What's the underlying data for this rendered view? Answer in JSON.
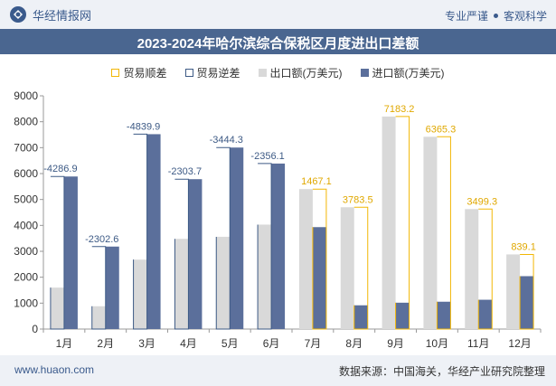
{
  "header": {
    "brand_name": "华经情报网",
    "tagline_left": "专业严谨",
    "tagline_right": "客观科学"
  },
  "title": "2023-2024年哈尔滨综合保税区月度进出口差额",
  "legend": {
    "surplus": "贸易顺差",
    "deficit": "贸易逆差",
    "export": "出口额(万美元)",
    "import": "进口额(万美元)"
  },
  "footer": {
    "url": "www.huaon.com",
    "source": "数据来源：中国海关，华经产业研究院整理"
  },
  "colors": {
    "surplus": "#f2b705",
    "deficit": "#3d5a85",
    "export": "#d9d9d9",
    "import": "#5b6f9b",
    "title_bg": "#4a6690"
  },
  "chart_data": {
    "type": "bar",
    "categories": [
      "1月",
      "2月",
      "3月",
      "4月",
      "5月",
      "6月",
      "7月",
      "8月",
      "9月",
      "10月",
      "11月",
      "12月"
    ],
    "ylim": [
      0,
      9000
    ],
    "yticks": [
      0,
      1000,
      2000,
      3000,
      4000,
      5000,
      6000,
      7000,
      8000,
      9000
    ],
    "grid": false,
    "legend_position": "top",
    "series": [
      {
        "name": "出口额(万美元)",
        "values": [
          1600,
          880,
          2680,
          3480,
          3560,
          4030,
          5400,
          4700,
          8200,
          7420,
          4630,
          2880
        ]
      },
      {
        "name": "进口额(万美元)",
        "values": [
          5886.9,
          3182.6,
          7519.9,
          5783.7,
          7004.3,
          6386.1,
          3932.9,
          916.5,
          1016.8,
          1054.7,
          1130.7,
          2040.9
        ]
      }
    ],
    "balance_labels": [
      "-4286.9",
      "-2302.6",
      "-4839.9",
      "-2303.7",
      "-3444.3",
      "-2356.1",
      "1467.1",
      "3783.5",
      "7183.2",
      "6365.3",
      "3499.3",
      "839.1"
    ]
  }
}
